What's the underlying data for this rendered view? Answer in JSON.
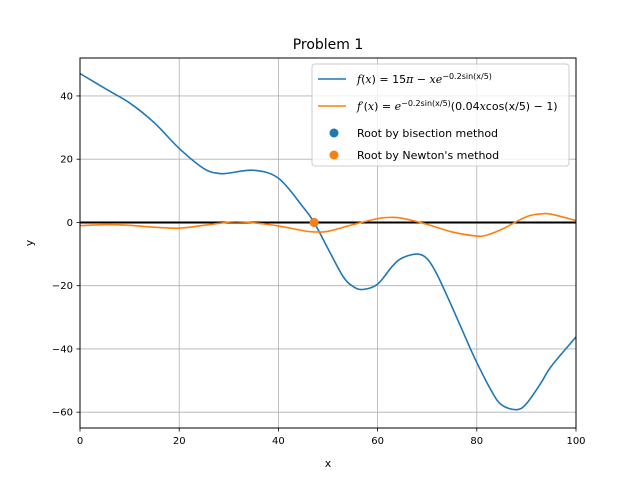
{
  "chart_data": {
    "type": "line",
    "title": "Problem 1",
    "xlabel": "x",
    "ylabel": "y",
    "xlim": [
      0,
      100
    ],
    "ylim": [
      -65,
      52
    ],
    "xticks": [
      0,
      20,
      40,
      60,
      80,
      100
    ],
    "xtick_labels": [
      "0",
      "20",
      "40",
      "60",
      "80",
      "100"
    ],
    "yticks": [
      -60,
      -40,
      -20,
      0,
      20,
      40
    ],
    "ytick_labels": [
      "−60",
      "−40",
      "−20",
      "0",
      "20",
      "40"
    ],
    "grid": true,
    "legend_position": "top-right",
    "zero_line_color": "#000000",
    "series": [
      {
        "name": "f(x) = 15π − xe^{−0.2sin(x/5)}",
        "kind": "line",
        "color": "#1f77b4",
        "x": [
          0,
          5,
          10,
          15,
          20,
          25,
          28,
          30,
          35,
          40,
          45,
          47.2,
          50,
          53,
          55,
          57,
          60,
          63,
          65,
          68,
          70,
          72,
          75,
          78,
          80,
          83,
          85,
          88,
          90,
          93,
          95,
          100
        ],
        "y": [
          47.1,
          42.4,
          37.8,
          31.5,
          23.4,
          17.0,
          15.5,
          15.6,
          16.5,
          14.0,
          4.8,
          0.0,
          -8.3,
          -17.0,
          -20.2,
          -21.2,
          -19.5,
          -13.8,
          -11.2,
          -10.0,
          -11.5,
          -16.5,
          -26.7,
          -37.4,
          -44.3,
          -53.4,
          -57.7,
          -59.2,
          -57.3,
          -50.6,
          -45.5,
          -36.2
        ]
      },
      {
        "name": "f'(x) = e^{−0.2sin(x/5)}(0.04xcos(x/5) − 1)",
        "kind": "line",
        "color": "#ff7f0e",
        "x": [
          0,
          5,
          10,
          15,
          20,
          25,
          30,
          32,
          35,
          40,
          45,
          47.2,
          50,
          55,
          60,
          62.5,
          65,
          70,
          75,
          80,
          82,
          85,
          90,
          93,
          95,
          100
        ],
        "y": [
          -1.0,
          -0.7,
          -0.9,
          -1.5,
          -1.8,
          -0.9,
          0.1,
          0.2,
          -0.1,
          -1.1,
          -2.6,
          -3.0,
          -2.8,
          -0.7,
          1.2,
          1.6,
          1.3,
          -0.6,
          -3.0,
          -4.3,
          -4.0,
          -2.2,
          1.8,
          2.7,
          2.6,
          0.6
        ]
      },
      {
        "name": "Root by bisection method",
        "kind": "scatter",
        "color": "#1f77b4",
        "x": [
          47.2
        ],
        "y": [
          0
        ]
      },
      {
        "name": "Root by Newton's method",
        "kind": "scatter",
        "color": "#ff7f0e",
        "x": [
          47.2
        ],
        "y": [
          0
        ]
      }
    ]
  }
}
